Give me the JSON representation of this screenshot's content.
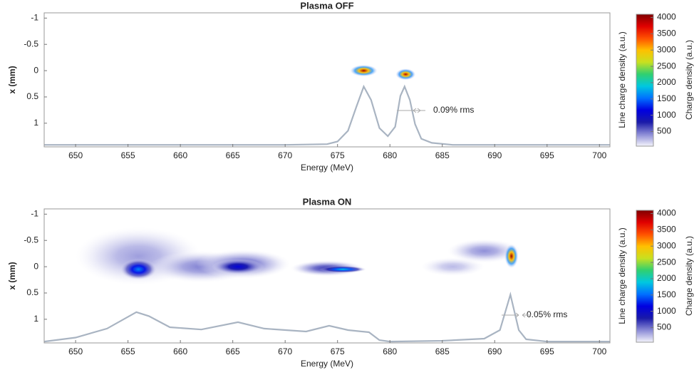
{
  "chart_data": [
    {
      "type": "heatmap",
      "title": "Plasma OFF",
      "xlabel": "Energy (MeV)",
      "ylabel": "x (mm)",
      "y2label": "Line charge density (a.u.)",
      "colorbar_label": "Charge density (a.u.)",
      "xlim": [
        647,
        701
      ],
      "xticks": [
        650,
        655,
        660,
        665,
        670,
        675,
        680,
        685,
        690,
        695,
        700
      ],
      "ylim": [
        -1.1,
        1.45
      ],
      "yticks": [
        -1,
        -0.5,
        0,
        0.5,
        1
      ],
      "y_reversed": true,
      "y2lim": [
        0,
        1
      ],
      "clim": [
        50,
        4100
      ],
      "cticks": [
        500,
        1000,
        1500,
        2000,
        2500,
        3000,
        3500,
        4000
      ],
      "colormap": [
        "#f4f4fb",
        "#8a8ad6",
        "#1a1aa8",
        "#0000e0",
        "#0070ff",
        "#00c8e0",
        "#30d070",
        "#c8e020",
        "#ffc000",
        "#ff5000",
        "#e00000",
        "#800000"
      ],
      "blobs": [
        {
          "energy": 677.5,
          "x": 0.0,
          "width": 2.6,
          "height": 0.22,
          "peak": 4000
        },
        {
          "energy": 681.5,
          "x": 0.07,
          "width": 1.9,
          "height": 0.22,
          "peak": 3900
        }
      ],
      "profile": {
        "color": "#a9b4c2",
        "axis": "y2",
        "x": [
          647,
          670,
          674,
          675,
          676,
          676.8,
          677.5,
          678.2,
          679,
          679.8,
          680.5,
          681,
          681.4,
          681.9,
          682.4,
          683,
          684,
          686,
          701
        ],
        "values": [
          0.015,
          0.015,
          0.02,
          0.04,
          0.12,
          0.3,
          0.45,
          0.35,
          0.14,
          0.08,
          0.15,
          0.38,
          0.45,
          0.35,
          0.17,
          0.06,
          0.03,
          0.015,
          0.015
        ]
      },
      "annotation": "0.09% rms"
    },
    {
      "type": "heatmap",
      "title": "Plasma ON",
      "xlabel": "Energy (MeV)",
      "ylabel": "x (mm)",
      "y2label": "Line charge density (a.u.)",
      "colorbar_label": "Charge density (a.u.)",
      "xlim": [
        647,
        701
      ],
      "xticks": [
        650,
        655,
        660,
        665,
        670,
        675,
        680,
        685,
        690,
        695,
        700
      ],
      "ylim": [
        -1.1,
        1.45
      ],
      "yticks": [
        -1,
        -0.5,
        0,
        0.5,
        1
      ],
      "y_reversed": true,
      "y2lim": [
        0,
        1
      ],
      "clim": [
        50,
        4100
      ],
      "cticks": [
        500,
        1000,
        1500,
        2000,
        2500,
        3000,
        3500,
        4000
      ],
      "colormap": [
        "#f4f4fb",
        "#8a8ad6",
        "#1a1aa8",
        "#0000e0",
        "#0070ff",
        "#00c8e0",
        "#30d070",
        "#c8e020",
        "#ffc000",
        "#ff5000",
        "#e00000",
        "#800000"
      ],
      "blobs": [
        {
          "energy": 656,
          "x": -0.2,
          "width": 12,
          "height": 1.1,
          "peak": 350
        },
        {
          "energy": 662,
          "x": 0.0,
          "width": 10,
          "height": 0.6,
          "peak": 450
        },
        {
          "energy": 666,
          "x": -0.05,
          "width": 9,
          "height": 0.55,
          "peak": 550
        },
        {
          "energy": 674,
          "x": 0.03,
          "width": 7,
          "height": 0.3,
          "peak": 700
        },
        {
          "energy": 686,
          "x": 0.0,
          "width": 6,
          "height": 0.35,
          "peak": 250
        },
        {
          "energy": 689,
          "x": -0.3,
          "width": 7,
          "height": 0.45,
          "peak": 400
        },
        {
          "energy": 656,
          "x": 0.05,
          "width": 3.5,
          "height": 0.4,
          "peak": 1600
        },
        {
          "energy": 665.5,
          "x": 0.0,
          "width": 5,
          "height": 0.3,
          "peak": 1100
        },
        {
          "energy": 675.5,
          "x": 0.05,
          "width": 4.5,
          "height": 0.13,
          "peak": 1900
        },
        {
          "energy": 691.6,
          "x": -0.2,
          "width": 1.3,
          "height": 0.45,
          "peak": 4000
        }
      ],
      "profile": {
        "color": "#a9b4c2",
        "axis": "y2",
        "x": [
          647,
          650,
          653,
          655.8,
          657,
          659,
          662,
          665.5,
          668,
          672,
          674.2,
          676,
          678,
          679,
          680,
          685,
          689,
          690.5,
          691.5,
          692.3,
          693,
          695,
          701
        ],
        "values": [
          0.01,
          0.04,
          0.107,
          0.23,
          0.2,
          0.117,
          0.1,
          0.155,
          0.107,
          0.085,
          0.128,
          0.096,
          0.08,
          0.021,
          0.01,
          0.016,
          0.032,
          0.096,
          0.36,
          0.096,
          0.027,
          0.01,
          0.01
        ]
      },
      "annotation": "0.05% rms"
    }
  ]
}
